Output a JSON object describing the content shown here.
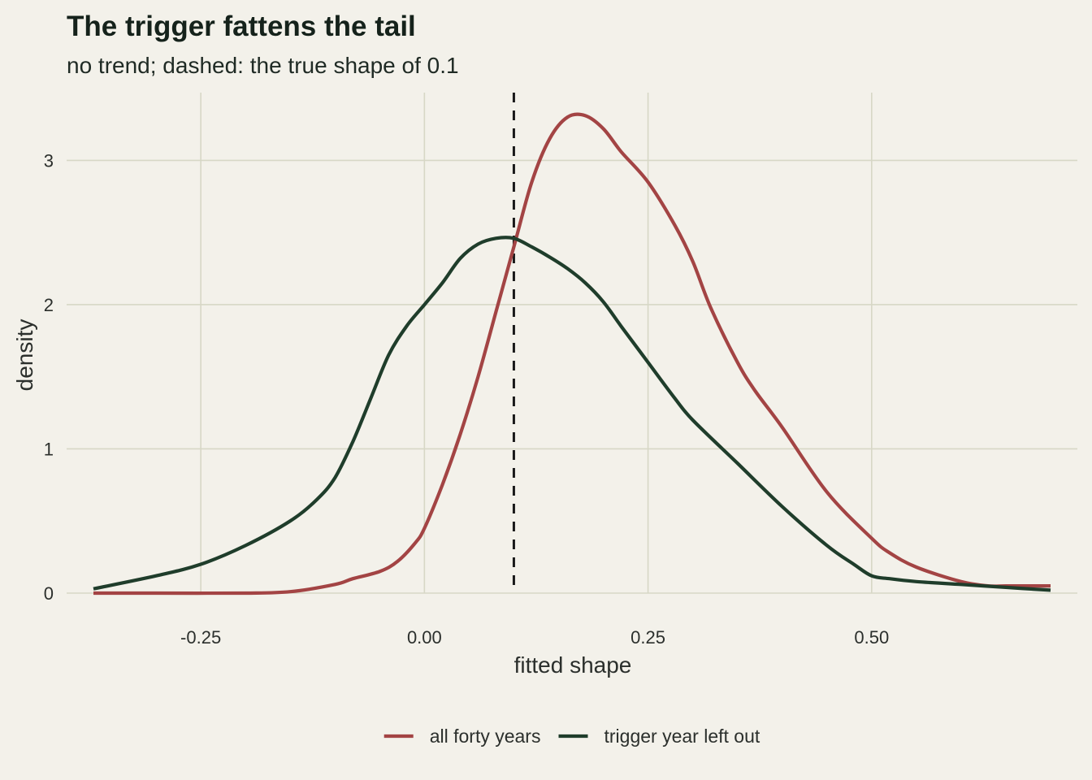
{
  "chart_data": {
    "type": "line",
    "title": "The trigger fattens the tail",
    "subtitle": "no trend; dashed: the true shape of 0.1",
    "xlabel": "fitted shape",
    "ylabel": "density",
    "xlim": [
      -0.4,
      0.73
    ],
    "ylim": [
      0,
      3.47
    ],
    "x_ticks": [
      -0.25,
      0.0,
      0.25,
      0.5
    ],
    "x_tick_labels": [
      "-0.25",
      "0.00",
      "0.25",
      "0.50"
    ],
    "y_ticks": [
      0,
      1,
      2,
      3
    ],
    "y_tick_labels": [
      "0",
      "1",
      "2",
      "3"
    ],
    "grid": true,
    "legend_position": "bottom",
    "reference_line": {
      "x": 0.1,
      "style": "dashed",
      "color": "#1a1a1a"
    },
    "series": [
      {
        "name": "all forty years",
        "color": "#a34444",
        "x": [
          -0.37,
          -0.3,
          -0.2,
          -0.15,
          -0.1,
          -0.08,
          -0.05,
          -0.03,
          -0.01,
          0.0,
          0.02,
          0.04,
          0.06,
          0.08,
          0.1,
          0.12,
          0.14,
          0.16,
          0.18,
          0.2,
          0.22,
          0.25,
          0.28,
          0.3,
          0.32,
          0.35,
          0.37,
          0.4,
          0.45,
          0.5,
          0.52,
          0.55,
          0.6,
          0.63,
          0.65,
          0.68,
          0.7
        ],
        "y": [
          0.0,
          0.0,
          0.0,
          0.01,
          0.06,
          0.1,
          0.15,
          0.22,
          0.35,
          0.45,
          0.75,
          1.1,
          1.5,
          1.95,
          2.4,
          2.85,
          3.15,
          3.3,
          3.31,
          3.22,
          3.06,
          2.85,
          2.55,
          2.3,
          1.98,
          1.6,
          1.4,
          1.15,
          0.7,
          0.38,
          0.28,
          0.18,
          0.08,
          0.05,
          0.05,
          0.05,
          0.05
        ]
      },
      {
        "name": "trigger year left out",
        "color": "#1f3d2b",
        "x": [
          -0.37,
          -0.3,
          -0.25,
          -0.2,
          -0.15,
          -0.12,
          -0.1,
          -0.08,
          -0.06,
          -0.04,
          -0.02,
          0.0,
          0.02,
          0.04,
          0.06,
          0.08,
          0.1,
          0.12,
          0.14,
          0.16,
          0.18,
          0.2,
          0.22,
          0.25,
          0.28,
          0.3,
          0.35,
          0.4,
          0.45,
          0.48,
          0.5,
          0.52,
          0.55,
          0.6,
          0.65,
          0.7
        ],
        "y": [
          0.03,
          0.12,
          0.2,
          0.33,
          0.5,
          0.65,
          0.8,
          1.05,
          1.35,
          1.65,
          1.85,
          2.0,
          2.15,
          2.32,
          2.42,
          2.46,
          2.46,
          2.4,
          2.33,
          2.25,
          2.15,
          2.02,
          1.85,
          1.6,
          1.35,
          1.2,
          0.9,
          0.6,
          0.33,
          0.2,
          0.12,
          0.1,
          0.08,
          0.06,
          0.04,
          0.02
        ]
      }
    ]
  }
}
